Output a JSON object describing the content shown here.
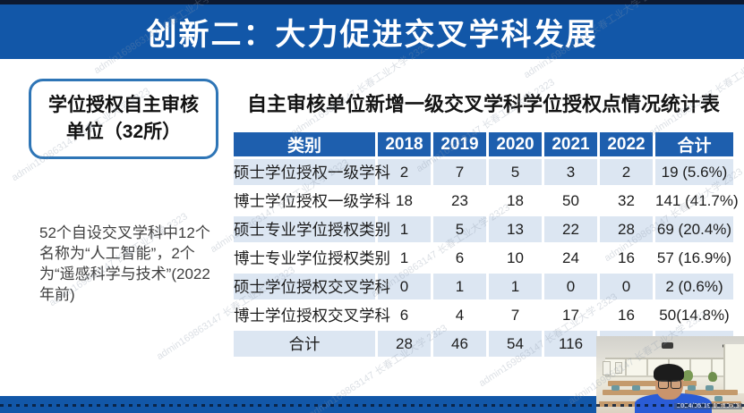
{
  "header": {
    "title": "创新二：大力促进交叉学科发展"
  },
  "sidebar": {
    "box_label": "学位授权自主审核单位（32所）",
    "note": "52个自设交叉学科中12个名称为“人工智能”，2个为“遥感科学与技术”(2022年前)"
  },
  "table": {
    "title": "自主审核单位新增一级交叉学科学位授权点情况统计表",
    "columns": [
      "类别",
      "2018",
      "2019",
      "2020",
      "2021",
      "2022",
      "合计"
    ],
    "rows": [
      [
        "硕士学位授权一级学科",
        "2",
        "7",
        "5",
        "3",
        "2",
        "19 (5.6%)"
      ],
      [
        "博士学位授权一级学科",
        "18",
        "23",
        "18",
        "50",
        "32",
        "141 (41.7%)"
      ],
      [
        "硕士专业学位授权类别",
        "1",
        "5",
        "13",
        "22",
        "28",
        "69 (20.4%)"
      ],
      [
        "博士专业学位授权类别",
        "1",
        "6",
        "10",
        "24",
        "16",
        "57 (16.9%)"
      ],
      [
        "硕士学位授权交叉学科",
        "0",
        "1",
        "1",
        "0",
        "0",
        "2 (0.6%)"
      ],
      [
        "博士学位授权交叉学科",
        "6",
        "4",
        "7",
        "17",
        "16",
        "50(14.8%)"
      ],
      [
        "合计",
        "28",
        "46",
        "54",
        "116",
        "",
        ""
      ]
    ]
  },
  "watermark": {
    "text": "admin169863147 长春工业大学 2323"
  },
  "webcam": {
    "timestamp": "2024/05/19 10:50:45"
  },
  "colors": {
    "header_blue": "#1257a8",
    "table_header_blue": "#1e5fae",
    "row_light_blue": "#dce6f2",
    "box_border_blue": "#2e75b6",
    "bottom_bar_blue": "#1257a8"
  }
}
